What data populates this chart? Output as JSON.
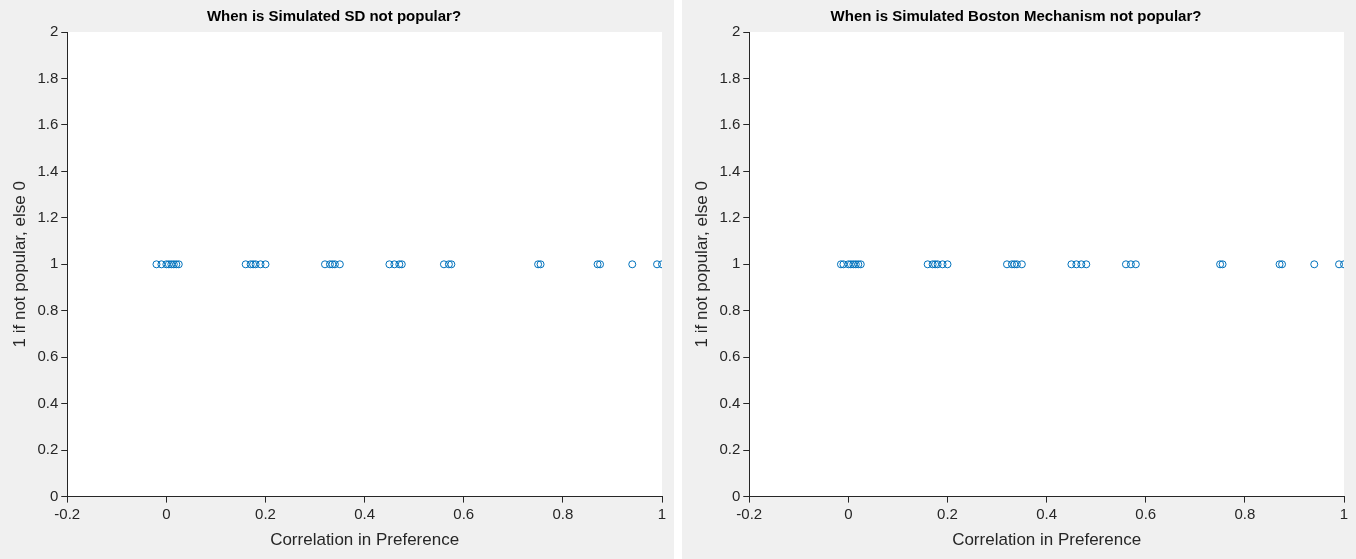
{
  "chart_data": [
    {
      "type": "scatter",
      "title": "When is Simulated SD not popular?",
      "xlabel": "Correlation in Preference",
      "ylabel": "1 if not popular, else 0",
      "marker": "circle",
      "grid": false,
      "legend": false,
      "series": [
        {
          "color": "#0072bd",
          "x": [
            -0.02,
            -0.01,
            0,
            0.005,
            0.01,
            0.015,
            0.02,
            0.025,
            0.16,
            0.17,
            0.175,
            0.18,
            0.19,
            0.2,
            0.32,
            0.33,
            0.335,
            0.34,
            0.35,
            0.45,
            0.46,
            0.47,
            0.475,
            0.56,
            0.57,
            0.575,
            0.75,
            0.755,
            0.87,
            0.875,
            0.94,
            0.99,
            1.0
          ],
          "values": [
            1,
            1,
            1,
            1,
            1,
            1,
            1,
            1,
            1,
            1,
            1,
            1,
            1,
            1,
            1,
            1,
            1,
            1,
            1,
            1,
            1,
            1,
            1,
            1,
            1,
            1,
            1,
            1,
            1,
            1,
            1,
            1,
            1
          ]
        }
      ],
      "xlim": [
        -0.2,
        1
      ],
      "xticks": [
        -0.2,
        0,
        0.2,
        0.4,
        0.6,
        0.8,
        1
      ],
      "ylim": [
        0,
        2
      ],
      "yticks": [
        0,
        0.2,
        0.4,
        0.6,
        0.8,
        1,
        1.2,
        1.4,
        1.6,
        1.8,
        2
      ]
    },
    {
      "type": "scatter",
      "title": "When is Simulated Boston Mechanism not popular?",
      "xlabel": "Correlation in Preference",
      "ylabel": "1 if not popular, else 0",
      "marker": "circle",
      "grid": false,
      "legend": false,
      "series": [
        {
          "color": "#0072bd",
          "x": [
            -0.015,
            -0.01,
            0,
            0.005,
            0.01,
            0.015,
            0.02,
            0.025,
            0.16,
            0.17,
            0.175,
            0.18,
            0.19,
            0.2,
            0.32,
            0.33,
            0.335,
            0.34,
            0.35,
            0.45,
            0.46,
            0.47,
            0.48,
            0.56,
            0.57,
            0.58,
            0.75,
            0.755,
            0.87,
            0.875,
            0.94,
            0.99,
            1.0
          ],
          "values": [
            1,
            1,
            1,
            1,
            1,
            1,
            1,
            1,
            1,
            1,
            1,
            1,
            1,
            1,
            1,
            1,
            1,
            1,
            1,
            1,
            1,
            1,
            1,
            1,
            1,
            1,
            1,
            1,
            1,
            1,
            1,
            1,
            1
          ]
        }
      ],
      "xlim": [
        -0.2,
        1
      ],
      "xticks": [
        -0.2,
        0,
        0.2,
        0.4,
        0.6,
        0.8,
        1
      ],
      "ylim": [
        0,
        2
      ],
      "yticks": [
        0,
        0.2,
        0.4,
        0.6,
        0.8,
        1,
        1.2,
        1.4,
        1.6,
        1.8,
        2
      ]
    }
  ]
}
